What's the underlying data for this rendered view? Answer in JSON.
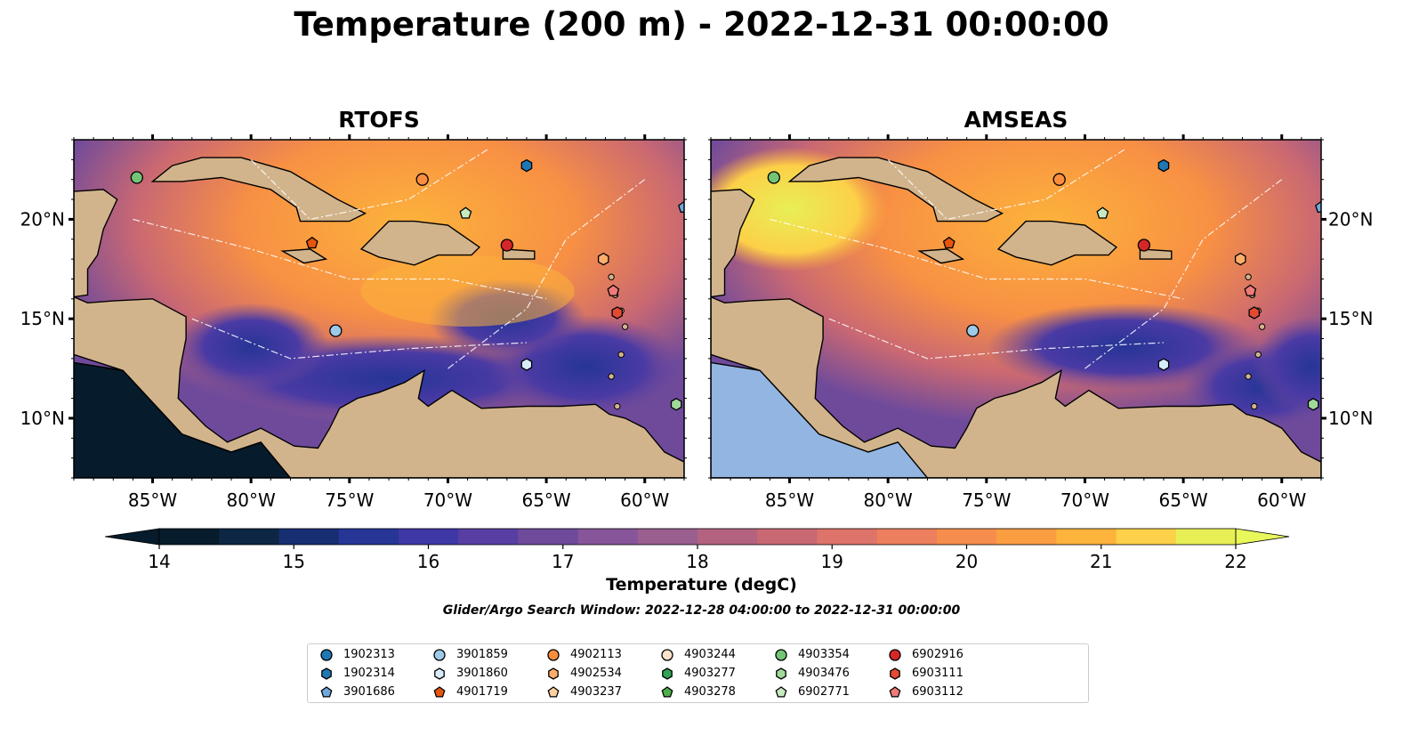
{
  "title": "Temperature (200 m) - 2022-12-31 00:00:00",
  "panels": [
    {
      "title": "RTOFS"
    },
    {
      "title": "AMSEAS"
    }
  ],
  "colorbar": {
    "label": "Temperature (degC)",
    "ticks": [
      "14",
      "15",
      "16",
      "17",
      "18",
      "19",
      "20",
      "21",
      "22"
    ],
    "range": [
      14,
      22
    ],
    "colors": [
      "#061b2b",
      "#0d2644",
      "#182e73",
      "#263596",
      "#3e37a6",
      "#583ea3",
      "#6f4a9b",
      "#86559a",
      "#9a5e8f",
      "#b3637f",
      "#c96873",
      "#dd7369",
      "#ed7e5e",
      "#f78d4d",
      "#fb9e42",
      "#fdb33c",
      "#fcd048",
      "#e8ef55"
    ],
    "under_color": "#061b2b",
    "over_color": "#e8f75a"
  },
  "axes": {
    "lon_ticks": [
      "85°W",
      "80°W",
      "75°W",
      "70°W",
      "65°W",
      "60°W"
    ],
    "lat_ticks": [
      "20°N",
      "15°N",
      "10°N"
    ]
  },
  "search_window": "Glider/Argo Search Window: 2022-12-28 04:00:00 to 2022-12-31 00:00:00",
  "legend": [
    {
      "id": "1902313",
      "marker": "circle",
      "color": "#1f77b4"
    },
    {
      "id": "1902314",
      "marker": "hexagon",
      "color": "#1f77b4"
    },
    {
      "id": "3901686",
      "marker": "pentagon",
      "color": "#6fa8dc"
    },
    {
      "id": "3901859",
      "marker": "circle",
      "color": "#9ecae9"
    },
    {
      "id": "3901860",
      "marker": "hexagon",
      "color": "#d6ecfa"
    },
    {
      "id": "4901719",
      "marker": "pentagon",
      "color": "#e6550d"
    },
    {
      "id": "4902113",
      "marker": "circle",
      "color": "#fd8d3c"
    },
    {
      "id": "4902534",
      "marker": "hexagon",
      "color": "#fdae6b"
    },
    {
      "id": "4903237",
      "marker": "pentagon",
      "color": "#fdd0a2"
    },
    {
      "id": "4903244",
      "marker": "circle",
      "color": "#fde2cc"
    },
    {
      "id": "4903277",
      "marker": "hexagon",
      "color": "#31a354"
    },
    {
      "id": "4903278",
      "marker": "pentagon",
      "color": "#4daf4a"
    },
    {
      "id": "4903354",
      "marker": "circle",
      "color": "#74c476"
    },
    {
      "id": "4903476",
      "marker": "hexagon",
      "color": "#a1d99b"
    },
    {
      "id": "6902771",
      "marker": "pentagon",
      "color": "#c7e9c0"
    },
    {
      "id": "6902916",
      "marker": "circle",
      "color": "#d62728"
    },
    {
      "id": "6903111",
      "marker": "hexagon",
      "color": "#e34a33"
    },
    {
      "id": "6903112",
      "marker": "pentagon",
      "color": "#f07a7a"
    }
  ],
  "chart_data": {
    "type": "heatmap",
    "title": "Temperature (200 m) - 2022-12-31 00:00:00",
    "subplots": [
      "RTOFS",
      "AMSEAS"
    ],
    "variable": "Temperature (degC)",
    "depth": "200 m",
    "color_range": [
      14,
      22
    ],
    "lon_range": [
      -89,
      -58
    ],
    "lat_range": [
      7,
      24
    ],
    "floats": [
      {
        "id": "4903354",
        "lon": -85.8,
        "lat": 22.1
      },
      {
        "id": "4902113",
        "lon": -71.3,
        "lat": 22.0
      },
      {
        "id": "1902314",
        "lon": -66.0,
        "lat": 22.7
      },
      {
        "id": "6902771",
        "lon": -69.1,
        "lat": 20.3
      },
      {
        "id": "3901686",
        "lon": -58.0,
        "lat": 20.6
      },
      {
        "id": "4901719",
        "lon": -76.9,
        "lat": 18.8
      },
      {
        "id": "6902916",
        "lon": -67.0,
        "lat": 18.7
      },
      {
        "id": "4902534",
        "lon": -62.1,
        "lat": 18.0
      },
      {
        "id": "6903112",
        "lon": -61.6,
        "lat": 16.4
      },
      {
        "id": "6903111",
        "lon": -61.4,
        "lat": 15.3
      },
      {
        "id": "3901859",
        "lon": -75.7,
        "lat": 14.4
      },
      {
        "id": "3901860",
        "lon": -66.0,
        "lat": 12.7
      },
      {
        "id": "4903476",
        "lon": -58.4,
        "lat": 10.7
      }
    ]
  }
}
